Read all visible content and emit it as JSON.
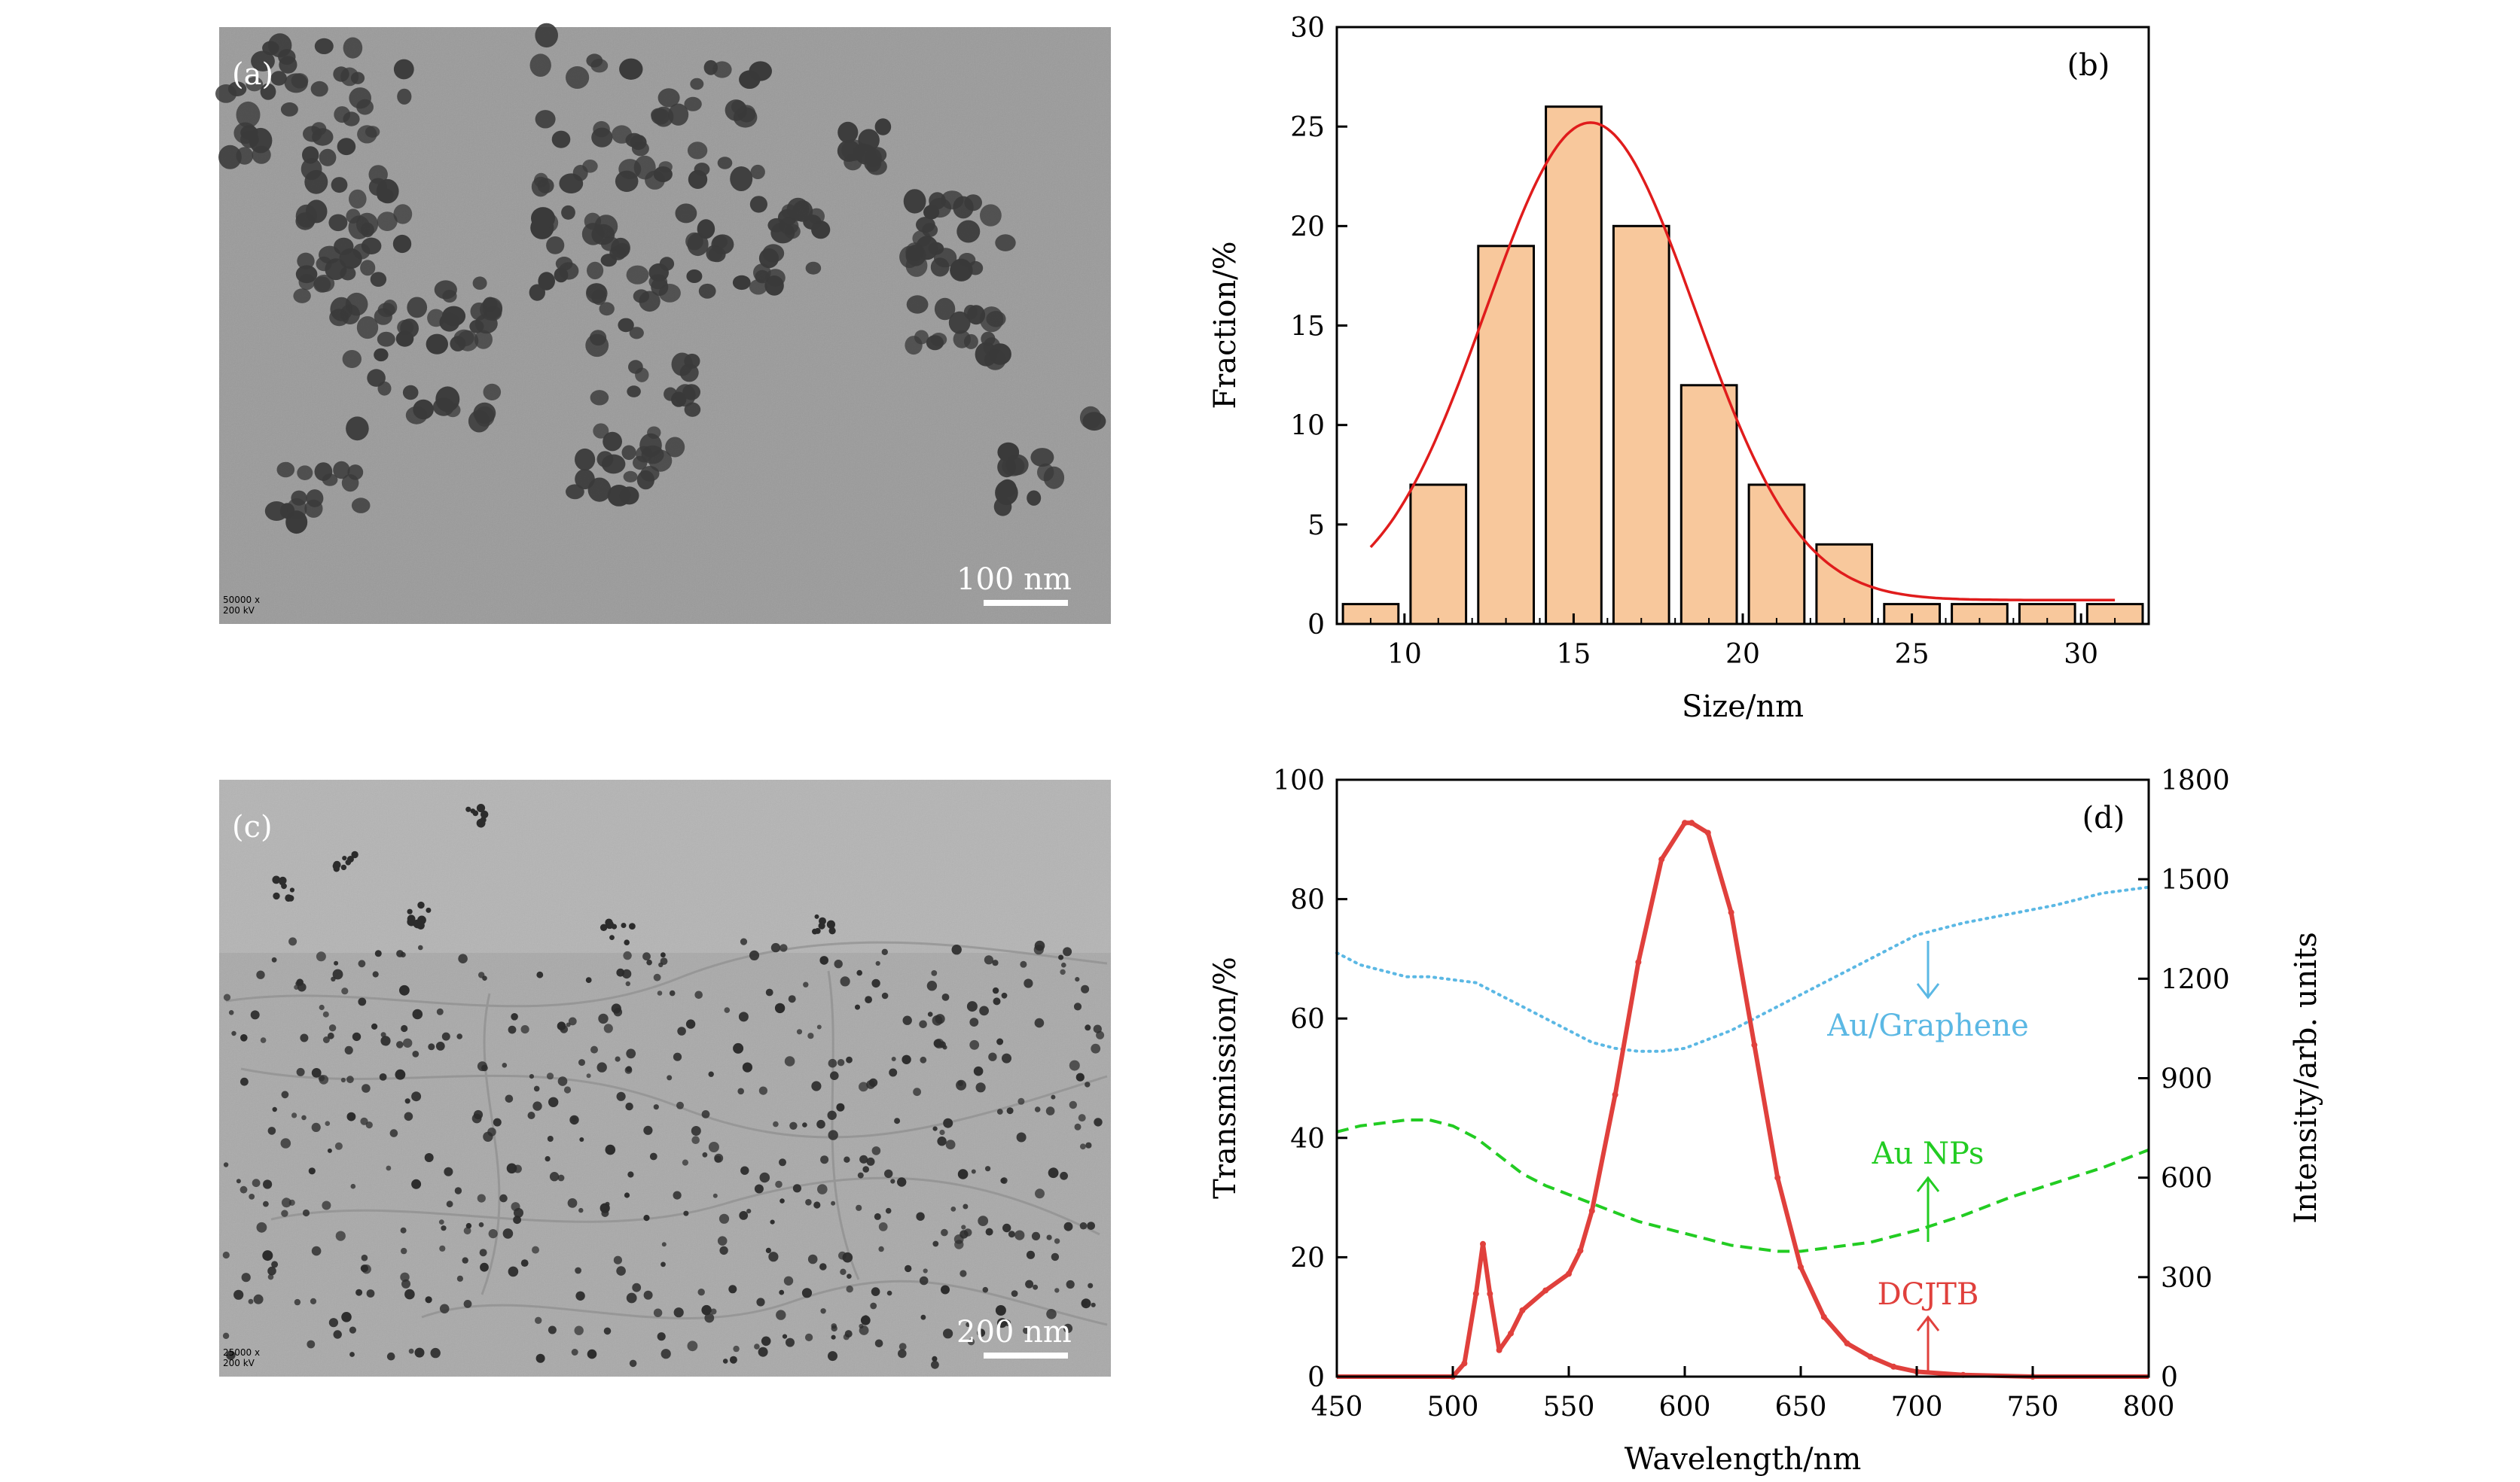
{
  "colors": {
    "bar_fill": "#f8c89c",
    "bar_stroke": "#000000",
    "fit_line": "#e01c1c",
    "au_graphene": "#5bb8e4",
    "au_nps": "#22cc22",
    "dcjtb": "#e0403c",
    "tem_background": "#9a9a9a"
  },
  "panel_a": {
    "label": "(a)",
    "scale_bar": "100 nm",
    "mag_line1": "50000 x",
    "mag_line2": "200 kV",
    "description_icon": "tem-micrograph-gold-nanoparticles"
  },
  "panel_c": {
    "label": "(c)",
    "scale_bar": "200 nm",
    "mag_line1": "25000 x",
    "mag_line2": "200 kV",
    "description_icon": "tem-micrograph-au-graphene"
  },
  "chart_data": [
    {
      "panel": "(b)",
      "type": "bar",
      "xlabel": "Size/nm",
      "ylabel": "Fraction/%",
      "xlim": [
        8,
        32
      ],
      "ylim": [
        0,
        30
      ],
      "xticks": [
        10,
        15,
        20,
        25,
        30
      ],
      "yticks": [
        0,
        5,
        10,
        15,
        20,
        25,
        30
      ],
      "bin_width": 2,
      "categories": [
        9,
        11,
        13,
        15,
        17,
        19,
        21,
        23,
        25,
        27,
        29,
        31
      ],
      "values": [
        1,
        7,
        19,
        26,
        20,
        12,
        7,
        4,
        1,
        1,
        1,
        1
      ],
      "fit": {
        "type": "gaussian",
        "center": 15.5,
        "sigma": 3.1,
        "peak": 25.2,
        "offset": 1.2,
        "x_range": [
          9,
          31
        ]
      }
    },
    {
      "panel": "(d)",
      "type": "line",
      "xlabel": "Wavelength/nm",
      "ylabel": "Transmission/%",
      "y2label": "Intensity/arb. units",
      "xlim": [
        450,
        800
      ],
      "ylim": [
        0,
        100
      ],
      "y2lim": [
        0,
        1800
      ],
      "xticks": [
        450,
        500,
        550,
        600,
        650,
        700,
        750,
        800
      ],
      "yticks": [
        0,
        20,
        40,
        60,
        80,
        100
      ],
      "y2ticks": [
        0,
        300,
        600,
        900,
        1200,
        1500,
        1800
      ],
      "series": [
        {
          "name": "Au/Graphene",
          "axis": "left",
          "style": "dotted",
          "x": [
            450,
            460,
            470,
            480,
            490,
            500,
            510,
            520,
            530,
            540,
            550,
            560,
            570,
            580,
            590,
            600,
            610,
            620,
            630,
            640,
            650,
            660,
            670,
            680,
            690,
            700,
            720,
            740,
            760,
            780,
            800
          ],
          "y": [
            71,
            69,
            68,
            67,
            67,
            66.5,
            66,
            64,
            62,
            60,
            58,
            56,
            55,
            54.5,
            54.5,
            55,
            56.5,
            58,
            60,
            62,
            64,
            66,
            68,
            70,
            72,
            74,
            76,
            77.5,
            79,
            81,
            82
          ]
        },
        {
          "name": "Au NPs",
          "axis": "left",
          "style": "dashed",
          "x": [
            450,
            460,
            470,
            480,
            490,
            500,
            510,
            520,
            530,
            540,
            550,
            560,
            570,
            580,
            590,
            600,
            610,
            620,
            630,
            640,
            650,
            660,
            670,
            680,
            690,
            700,
            720,
            740,
            760,
            780,
            800
          ],
          "y": [
            41,
            42,
            42.5,
            43,
            43,
            42,
            40,
            37,
            34,
            32,
            30.5,
            29,
            27.5,
            26,
            25,
            24,
            23,
            22,
            21.5,
            21,
            21,
            21.5,
            22,
            22.5,
            23.5,
            24.5,
            27,
            30,
            32.5,
            35,
            38
          ]
        },
        {
          "name": "DCJTB",
          "axis": "right",
          "style": "solid-markers",
          "x": [
            450,
            500,
            505,
            510,
            513,
            516,
            520,
            525,
            530,
            540,
            550,
            555,
            560,
            570,
            580,
            590,
            600,
            603,
            610,
            620,
            630,
            640,
            650,
            660,
            670,
            680,
            690,
            700,
            720,
            750,
            800
          ],
          "y": [
            0,
            0,
            40,
            250,
            400,
            250,
            80,
            130,
            200,
            260,
            310,
            380,
            500,
            850,
            1250,
            1560,
            1670,
            1670,
            1640,
            1400,
            1000,
            600,
            330,
            180,
            100,
            60,
            30,
            15,
            5,
            0,
            0
          ]
        }
      ],
      "annotations": [
        {
          "text": "Au/Graphene",
          "arrow": "down"
        },
        {
          "text": "Au NPs",
          "arrow": "up"
        },
        {
          "text": "DCJTB",
          "arrow": "up"
        }
      ]
    }
  ]
}
